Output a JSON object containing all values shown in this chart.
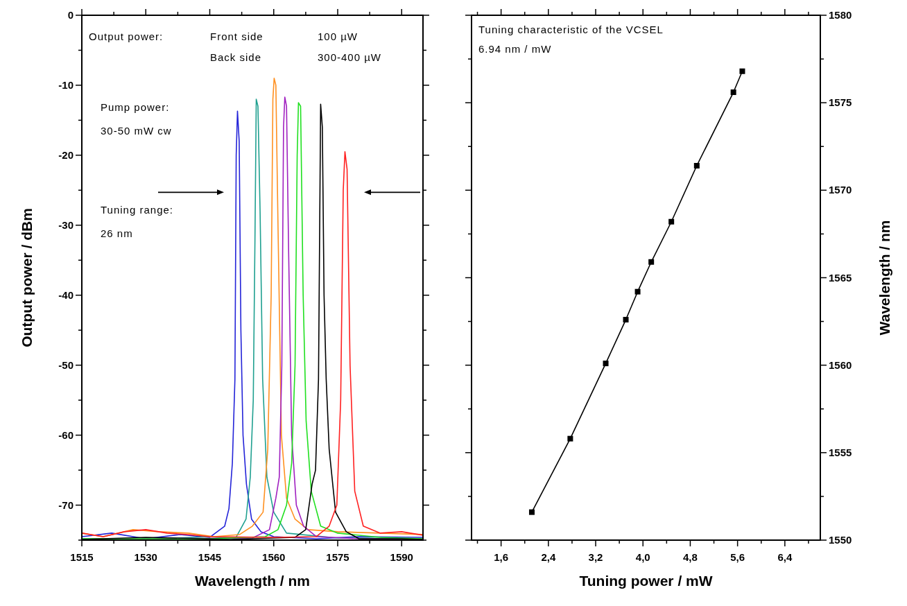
{
  "chart_data": [
    {
      "type": "line",
      "xlabel": "Wavelength / nm",
      "ylabel": "Output power / dBm",
      "xlim": [
        1515,
        1595
      ],
      "ylim": [
        -75,
        0
      ],
      "xticks": [
        1515,
        {
          "value": 1522.5,
          "label": null
        },
        1530,
        {
          "value": 1537.5,
          "label": null
        },
        1545,
        {
          "value": 1552.5,
          "label": null
        },
        1560,
        {
          "value": 1567.5,
          "label": null
        },
        1575,
        {
          "value": 1582.5,
          "label": null
        },
        1590
      ],
      "yticks": [
        {
          "value": -75,
          "label": null
        },
        -70,
        {
          "value": -65,
          "label": null
        },
        -60,
        {
          "value": -55,
          "label": null
        },
        -50,
        {
          "value": -45,
          "label": null
        },
        -40,
        {
          "value": -35,
          "label": null
        },
        -30,
        {
          "value": -25,
          "label": null
        },
        -20,
        {
          "value": -15,
          "label": null
        },
        -10,
        {
          "value": -5,
          "label": null
        },
        0
      ],
      "marker": "none",
      "line_style": "solid",
      "annotations": [
        "Output power:",
        "Front side",
        "100 µW",
        "Back side",
        "300-400 µW",
        "Pump power:",
        "30-50 mW cw",
        "Tuning range:",
        "26 nm"
      ],
      "series": [
        {
          "color": "#2424d8",
          "x": [
            1515,
            1522,
            1530,
            1538,
            1545,
            1548.5,
            1549.5,
            1550.3,
            1550.9,
            1551.2,
            1551.5,
            1551.9,
            1552.3,
            1552.8,
            1553.6,
            1554.8,
            1557,
            1560,
            1570,
            1580,
            1595
          ],
          "values": [
            -74.5,
            -74,
            -74.8,
            -74.2,
            -74.6,
            -73,
            -70.5,
            -64,
            -52,
            -20,
            -13.7,
            -18,
            -45,
            -60,
            -67,
            -72,
            -73.8,
            -74.5,
            -74.8,
            -74.5,
            -74.6
          ]
        },
        {
          "color": "#20a090",
          "x": [
            1515,
            1530,
            1545,
            1551,
            1553.5,
            1554.5,
            1555.2,
            1555.6,
            1555.9,
            1556.3,
            1556.8,
            1557.4,
            1558.4,
            1560,
            1563,
            1575,
            1595
          ],
          "values": [
            -74.8,
            -74.9,
            -74.5,
            -74.8,
            -72,
            -66,
            -55,
            -32,
            -12,
            -13,
            -28,
            -52,
            -66,
            -71,
            -74,
            -74.7,
            -74.8
          ]
        },
        {
          "color": "#ff9020",
          "x": [
            1515,
            1520,
            1527,
            1533,
            1540,
            1546,
            1552,
            1555,
            1557.5,
            1558.6,
            1559.4,
            1559.8,
            1560.1,
            1560.5,
            1561,
            1561.8,
            1563,
            1565,
            1568,
            1575,
            1585,
            1595
          ],
          "values": [
            -74,
            -74.5,
            -73.5,
            -73.8,
            -74,
            -74.5,
            -74.2,
            -73,
            -71,
            -62,
            -40,
            -12,
            -9,
            -10,
            -30,
            -60,
            -69,
            -72,
            -73.5,
            -73.8,
            -74,
            -74.2
          ]
        },
        {
          "color": "#a020c0",
          "x": [
            1515,
            1555,
            1559,
            1560.5,
            1561.3,
            1561.9,
            1562.3,
            1562.6,
            1563,
            1563.5,
            1564.2,
            1565.3,
            1567,
            1570,
            1580,
            1595
          ],
          "values": [
            -74.9,
            -74.7,
            -73.5,
            -69,
            -66,
            -50,
            -16,
            -11.7,
            -13,
            -34,
            -60,
            -70,
            -73,
            -74.5,
            -74.8,
            -74.9
          ]
        },
        {
          "color": "#20e020",
          "x": [
            1515,
            1545,
            1558,
            1561,
            1563,
            1564.2,
            1565,
            1565.5,
            1565.8,
            1566.3,
            1566.9,
            1567.6,
            1568.8,
            1571,
            1575,
            1585,
            1595
          ],
          "values": [
            -74.8,
            -74.8,
            -74.5,
            -73.5,
            -70,
            -64,
            -50,
            -20,
            -12.5,
            -13,
            -40,
            -58,
            -68,
            -73,
            -74,
            -74.6,
            -74.8
          ]
        },
        {
          "color": "#000000",
          "x": [
            1515,
            1530,
            1550,
            1565,
            1567.5,
            1569,
            1569.8,
            1570.5,
            1571,
            1571.4,
            1571.8,
            1572.3,
            1573,
            1574.5,
            1577,
            1580,
            1590,
            1595
          ],
          "values": [
            -74.9,
            -74.6,
            -74.9,
            -74.6,
            -73.5,
            -67,
            -65,
            -52,
            -12.7,
            -16,
            -40,
            -52,
            -62,
            -71,
            -73.8,
            -74.8,
            -74.8,
            -74.9
          ]
        },
        {
          "color": "#ff2020",
          "x": [
            1515,
            1520,
            1525,
            1530,
            1535,
            1540,
            1545,
            1560,
            1570,
            1573,
            1574.8,
            1575.7,
            1576.3,
            1576.7,
            1577.2,
            1577.9,
            1579,
            1581,
            1585,
            1590,
            1595
          ],
          "values": [
            -74,
            -74.5,
            -73.8,
            -73.5,
            -74,
            -74.2,
            -74.5,
            -74.6,
            -74.5,
            -73,
            -70,
            -55,
            -25,
            -19.5,
            -22,
            -50,
            -68,
            -73,
            -74,
            -73.8,
            -74.3
          ]
        }
      ]
    },
    {
      "type": "line",
      "xlabel": "Tuning power / mW",
      "y2label": "Wavelength / nm",
      "xlim": [
        1.1,
        7.0
      ],
      "y2lim": [
        1550,
        1580
      ],
      "xticks": [
        {
          "value": 1.2,
          "label": null
        },
        {
          "value": 1.6,
          "label": "1,6"
        },
        {
          "value": 2.0,
          "label": null
        },
        {
          "value": 2.4,
          "label": "2,4"
        },
        {
          "value": 2.8,
          "label": null
        },
        {
          "value": 3.2,
          "label": "3,2"
        },
        {
          "value": 3.6,
          "label": null
        },
        {
          "value": 4.0,
          "label": "4,0"
        },
        {
          "value": 4.4,
          "label": null
        },
        {
          "value": 4.8,
          "label": "4,8"
        },
        {
          "value": 5.2,
          "label": null
        },
        {
          "value": 5.6,
          "label": "5,6"
        },
        {
          "value": 6.0,
          "label": null
        },
        {
          "value": 6.4,
          "label": "6,4"
        },
        {
          "value": 6.8,
          "label": null
        }
      ],
      "y2ticks": [
        1550,
        {
          "value": 1552.5,
          "label": null
        },
        1555,
        {
          "value": 1557.5,
          "label": null
        },
        1560,
        {
          "value": 1562.5,
          "label": null
        },
        1565,
        {
          "value": 1567.5,
          "label": null
        },
        1570,
        {
          "value": 1572.5,
          "label": null
        },
        1575,
        {
          "value": 1577.5,
          "label": null
        },
        1580
      ],
      "marker": "square",
      "line_style": "solid",
      "annotations": [
        "Tuning characteristic of the VCSEL",
        "6.94 nm / mW"
      ],
      "series": [
        {
          "color": "#000000",
          "axis": "y2",
          "x": [
            2.12,
            2.77,
            3.37,
            3.71,
            3.91,
            4.14,
            4.48,
            4.91,
            5.53,
            5.68
          ],
          "values": [
            1551.6,
            1555.8,
            1560.1,
            1562.6,
            1564.2,
            1565.9,
            1568.2,
            1571.4,
            1575.6,
            1576.8
          ]
        }
      ]
    }
  ]
}
